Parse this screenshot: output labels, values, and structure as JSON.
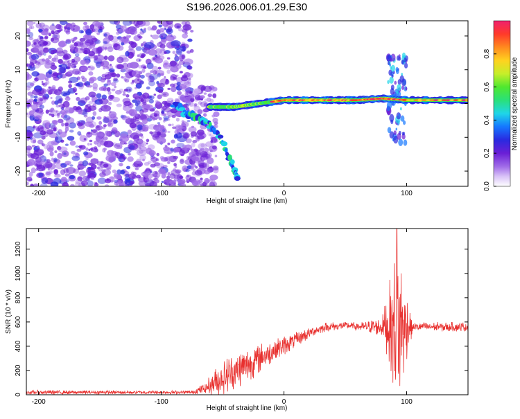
{
  "colors": {
    "line": "#e8312f",
    "axis": "#000000",
    "background": "#ffffff",
    "noise": "#a06be8",
    "noise_dark": "#6a1fd6"
  },
  "chart_data": [
    {
      "type": "heatmap",
      "title": "S196.2026.006.01.29.E30",
      "xlabel": "Height of straight line (km)",
      "ylabel": "Frequency (Hz)",
      "xlim": [
        -210,
        150
      ],
      "ylim": [
        -24.5,
        24.5
      ],
      "xticks": [
        -200,
        -100,
        0,
        100
      ],
      "yticks": [
        -20,
        -10,
        0,
        10,
        20
      ],
      "colorbar": {
        "label": "Normalized spectral amplitude",
        "range": [
          0,
          1
        ],
        "ticks": [
          0.0,
          0.2,
          0.4,
          0.6,
          0.8
        ],
        "tick_labels": [
          "0.0",
          "0.2",
          "0.4",
          "0.6",
          "0.8"
        ]
      },
      "features": [
        {
          "name": "noise-field",
          "x_range": [
            -210,
            -75
          ],
          "f_range": [
            -24.5,
            24.5
          ],
          "level": 0.15
        },
        {
          "name": "residual-noise-strip",
          "x_range": [
            -75,
            -55
          ],
          "f_range": [
            -24.5,
            5
          ],
          "level": 0.12
        },
        {
          "name": "doppler-line-descending",
          "points": [
            [
              -90,
              0
            ],
            [
              -80,
              -3
            ],
            [
              -72,
              -4
            ],
            [
              -62,
              -6
            ],
            [
              -52,
              -10
            ],
            [
              -42,
              -18
            ],
            [
              -38,
              -22
            ]
          ],
          "level": 0.35
        },
        {
          "name": "carrier-line",
          "points": [
            [
              -60,
              -1
            ],
            [
              -40,
              -1
            ],
            [
              -20,
              0
            ],
            [
              0,
              1
            ],
            [
              20,
              1
            ],
            [
              40,
              1
            ],
            [
              60,
              1
            ],
            [
              80,
              1.5
            ],
            [
              100,
              1
            ],
            [
              150,
              1
            ]
          ],
          "level": 0.9
        },
        {
          "name": "spike-cluster-near-95",
          "x_range": [
            85,
            100
          ],
          "f_range": [
            -12,
            16
          ],
          "level": 0.3
        }
      ]
    },
    {
      "type": "line",
      "title": "",
      "xlabel": "Height of straight line (km)",
      "ylabel": "SNR (10 * v/v)",
      "xlim": [
        -210,
        150
      ],
      "ylim": [
        0,
        1370
      ],
      "xticks": [
        -200,
        -100,
        0,
        100
      ],
      "yticks": [
        0,
        200,
        400,
        600,
        800,
        1000,
        1200
      ],
      "series": [
        {
          "name": "SNR",
          "envelope": {
            "x": [
              -210,
              -150,
              -100,
              -75,
              -65,
              -55,
              -45,
              -35,
              -25,
              -15,
              -5,
              5,
              15,
              25,
              35,
              50,
              65,
              80,
              85,
              90,
              93,
              96,
              100,
              105,
              120,
              150
            ],
            "mean": [
              20,
              20,
              20,
              20,
              50,
              110,
              170,
              220,
              270,
              330,
              380,
              430,
              480,
              530,
              560,
              570,
              560,
              560,
              580,
              560,
              560,
              560,
              560,
              560,
              560,
              560
            ],
            "amplitude": [
              18,
              15,
              15,
              15,
              45,
              120,
              160,
              150,
              140,
              110,
              90,
              70,
              55,
              40,
              40,
              30,
              40,
              80,
              300,
              600,
              800,
              550,
              300,
              40,
              40,
              40
            ]
          },
          "peak": {
            "x": 92,
            "y": 1370
          }
        }
      ]
    }
  ]
}
